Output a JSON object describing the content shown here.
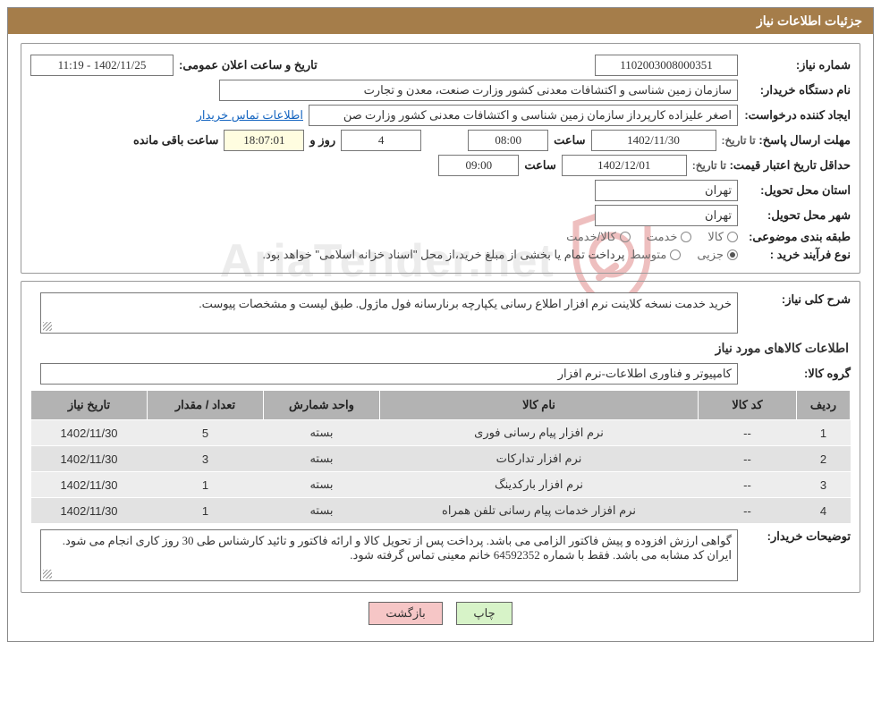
{
  "title_bar": "جزئیات اطلاعات نیاز",
  "labels": {
    "need_no": "شماره نیاز:",
    "announce_dt": "تاریخ و ساعت اعلان عمومی:",
    "buyer": "نام دستگاه خریدار:",
    "requester": "ایجاد کننده درخواست:",
    "contact_link": "اطلاعات تماس خریدار",
    "resp_deadline": "مهلت ارسال پاسخ:",
    "to_date": "تا تاریخ:",
    "hour": "ساعت",
    "days_and": "روز و",
    "remaining": "ساعت باقی مانده",
    "price_valid": "حداقل تاریخ اعتبار قیمت:",
    "deliv_province": "استان محل تحویل:",
    "deliv_city": "شهر محل تحویل:",
    "category": "طبقه بندی موضوعی:",
    "cat_goods": "کالا",
    "cat_service": "خدمت",
    "cat_both": "کالا/خدمت",
    "buy_type": "نوع فرآیند خرید :",
    "bt_partial": "جزیی",
    "bt_medium": "متوسط",
    "bt_note": "پرداخت تمام یا بخشی از مبلغ خرید،از محل \"اسناد خزانه اسلامی\" خواهد بود.",
    "gen_desc": "شرح کلی نیاز:",
    "goods_hdr": "اطلاعات کالاهای مورد نیاز",
    "goods_group": "گروه کالا:",
    "buyer_notes": "توضیحات خریدار:"
  },
  "fields": {
    "need_no": "1102003008000351",
    "announce_dt": "1402/11/25 - 11:19",
    "buyer": "سازمان زمین شناسی و اکتشافات معدنی کشور وزارت صنعت، معدن و تجارت",
    "requester": "اصغر علیزاده کارپرداز سازمان زمین شناسی و اکتشافات معدنی کشور وزارت صن",
    "resp_date": "1402/11/30",
    "resp_time": "08:00",
    "resp_days_left": "4",
    "resp_hrs_left": "18:07:01",
    "price_date": "1402/12/01",
    "price_time": "09:00",
    "province": "تهران",
    "city": "تهران",
    "gen_desc": "خرید خدمت نسخه کلاینت نرم افزار اطلاع رسانی یکپارچه برنارسانه فول ماژول. طبق لیست و مشخصات پیوست.",
    "goods_group": "کامپیوتر و فناوری اطلاعات-نرم افزار",
    "buyer_notes": "گواهی ارزش افزوده و پیش فاکتور الزامی می باشد. پرداخت پس از تحویل کالا و ارائه فاکتور  و تائید کارشناس طی 30 روز کاری انجام می شود. ایران کد مشابه می باشد. فقط با شماره 64592352 خانم معینی تماس گرفته شود."
  },
  "table": {
    "headers": {
      "row": "ردیف",
      "code": "کد کالا",
      "name": "نام کالا",
      "unit": "واحد شمارش",
      "qty": "تعداد / مقدار",
      "date": "تاریخ نیاز"
    },
    "rows": [
      {
        "n": "1",
        "code": "--",
        "name": "نرم افزار پیام رسانی فوری",
        "unit": "بسته",
        "qty": "5",
        "date": "1402/11/30"
      },
      {
        "n": "2",
        "code": "--",
        "name": "نرم افزار تدارکات",
        "unit": "بسته",
        "qty": "3",
        "date": "1402/11/30"
      },
      {
        "n": "3",
        "code": "--",
        "name": "نرم افزار بارکدینگ",
        "unit": "بسته",
        "qty": "1",
        "date": "1402/11/30"
      },
      {
        "n": "4",
        "code": "--",
        "name": "نرم افزار خدمات پیام رسانی تلفن همراه",
        "unit": "بسته",
        "qty": "1",
        "date": "1402/11/30"
      }
    ]
  },
  "buttons": {
    "print": "چاپ",
    "back": "بازگشت"
  },
  "watermark": "AriaTender.net",
  "colors": {
    "title_bg": "#a57d4a",
    "th_bg": "#b3b3b3",
    "row_even": "#ededed",
    "row_odd": "#e2e2e2",
    "btn_print": "#d7f3c8",
    "btn_back": "#f6c6c6",
    "link": "#1565c0"
  }
}
